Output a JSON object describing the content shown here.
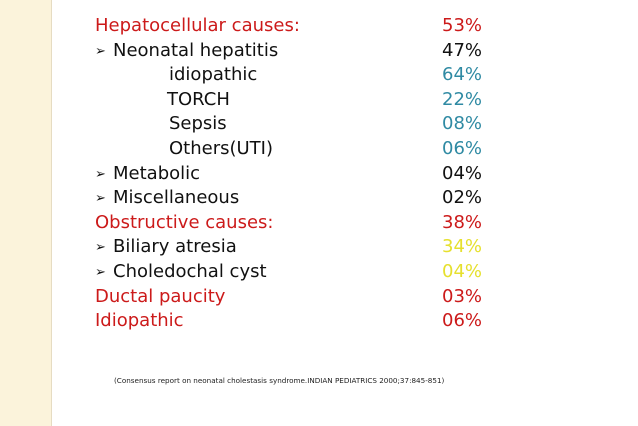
{
  "colors": {
    "sidebar": "#fbf3db",
    "heading_red": "#cc1a1a",
    "text_black": "#111111",
    "teal": "#2f8aa3",
    "yellow": "#e6e02e"
  },
  "rows": [
    {
      "label": "Hepatocellular causes:",
      "value": "53%"
    },
    {
      "label": "Neonatal hepatitis",
      "value": "47%"
    },
    {
      "label": "idiopathic",
      "value": "64%"
    },
    {
      "label": "TORCH",
      "value": "22%"
    },
    {
      "label": "Sepsis",
      "value": "08%"
    },
    {
      "label": "Others(UTI)",
      "value": "06%"
    },
    {
      "label": "Metabolic",
      "value": "04%"
    },
    {
      "label": "Miscellaneous",
      "value": "02%"
    },
    {
      "label": "Obstructive causes:",
      "value": "38%"
    },
    {
      "label": "Biliary atresia",
      "value": "34%"
    },
    {
      "label": "Choledochal cyst",
      "value": "04%"
    },
    {
      "label": "Ductal paucity",
      "value": "03%"
    },
    {
      "label": "Idiopathic",
      "value": "06%"
    }
  ],
  "bullet_glyph": "➢",
  "citation": "(Consensus report on neonatal cholestasis syndrome.INDIAN PEDIATRICS 2000;37:845-851)"
}
